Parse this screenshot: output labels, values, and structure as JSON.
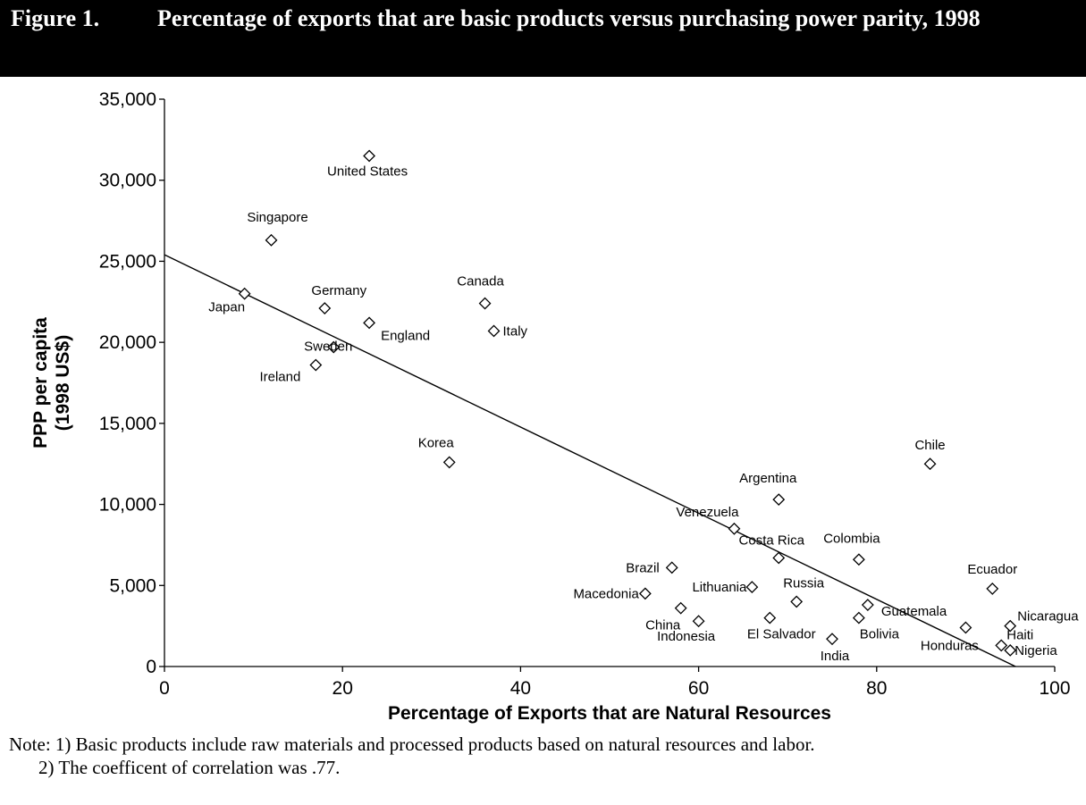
{
  "figure": {
    "label": "Figure 1.",
    "title": "Percentage of exports that are basic products versus purchasing power parity, 1998"
  },
  "notes": {
    "note1": "Note: 1) Basic products include raw materials and processed products based on natural resources and labor.",
    "note2": "2) The coefficent of correlation was .77."
  },
  "chart_data": {
    "type": "scatter",
    "title": "Percentage of exports that are basic products versus purchasing power parity, 1998",
    "xlabel": "Percentage of Exports that are Natural Resources",
    "ylabel_lines": [
      "PPP per capita",
      "(1998 US$)"
    ],
    "xlim": [
      0,
      100
    ],
    "ylim": [
      0,
      35000
    ],
    "x_ticks": [
      0,
      20,
      40,
      60,
      80,
      100
    ],
    "x_tick_labels": [
      "0",
      "20",
      "40",
      "60",
      "80",
      "100"
    ],
    "y_ticks": [
      0,
      5000,
      10000,
      15000,
      20000,
      25000,
      30000,
      35000
    ],
    "y_tick_labels": [
      "0",
      "5,000",
      "10,000",
      "15,000",
      "20,000",
      "25,000",
      "30,000",
      "35,000"
    ],
    "grid": false,
    "marker": "diamond",
    "trendline": {
      "x": [
        0,
        95.6
      ],
      "y": [
        25400,
        0
      ]
    },
    "points": [
      {
        "label": "United States",
        "x": 23,
        "y": 31500
      },
      {
        "label": "Singapore",
        "x": 12,
        "y": 26300
      },
      {
        "label": "Japan",
        "x": 9,
        "y": 23000
      },
      {
        "label": "Germany",
        "x": 18,
        "y": 22100
      },
      {
        "label": "England",
        "x": 23,
        "y": 21200
      },
      {
        "label": "Canada",
        "x": 36,
        "y": 22400
      },
      {
        "label": "Italy",
        "x": 37,
        "y": 20700
      },
      {
        "label": "Sweden",
        "x": 19,
        "y": 19700
      },
      {
        "label": "Ireland",
        "x": 17,
        "y": 18600
      },
      {
        "label": "Korea",
        "x": 32,
        "y": 12600
      },
      {
        "label": "Chile",
        "x": 86,
        "y": 12500
      },
      {
        "label": "Argentina",
        "x": 69,
        "y": 10300
      },
      {
        "label": "Venezuela",
        "x": 64,
        "y": 8500
      },
      {
        "label": "Costa Rica",
        "x": 69,
        "y": 6700
      },
      {
        "label": "Colombia",
        "x": 78,
        "y": 6600
      },
      {
        "label": "Brazil",
        "x": 57,
        "y": 6100
      },
      {
        "label": "Macedonia",
        "x": 54,
        "y": 4500
      },
      {
        "label": "Lithuania",
        "x": 66,
        "y": 4900
      },
      {
        "label": "Ecuador",
        "x": 93,
        "y": 4800
      },
      {
        "label": "Russia",
        "x": 71,
        "y": 4000
      },
      {
        "label": "Guatemala",
        "x": 79,
        "y": 3800
      },
      {
        "label": "China",
        "x": 58,
        "y": 3600
      },
      {
        "label": "Indonesia",
        "x": 60,
        "y": 2800
      },
      {
        "label": "El Salvador",
        "x": 68,
        "y": 3000
      },
      {
        "label": "Bolivia",
        "x": 78,
        "y": 3000
      },
      {
        "label": "India",
        "x": 75,
        "y": 1700
      },
      {
        "label": "Honduras",
        "x": 90,
        "y": 2400
      },
      {
        "label": "Nicaragua",
        "x": 95,
        "y": 2500
      },
      {
        "label": "Haiti",
        "x": 94,
        "y": 1300
      },
      {
        "label": "Nigeria",
        "x": 95,
        "y": 1000
      }
    ]
  }
}
